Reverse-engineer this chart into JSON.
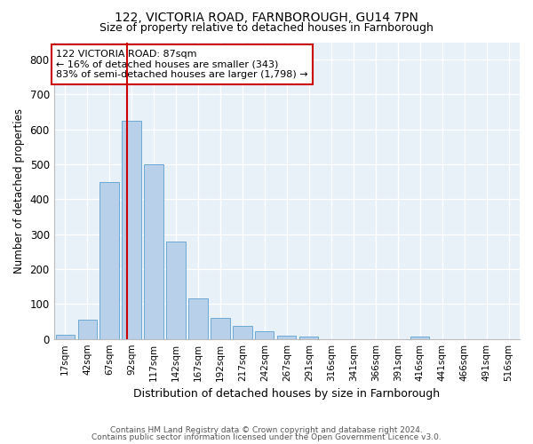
{
  "title1": "122, VICTORIA ROAD, FARNBOROUGH, GU14 7PN",
  "title2": "Size of property relative to detached houses in Farnborough",
  "xlabel": "Distribution of detached houses by size in Farnborough",
  "ylabel": "Number of detached properties",
  "bar_labels": [
    "17sqm",
    "42sqm",
    "67sqm",
    "92sqm",
    "117sqm",
    "142sqm",
    "167sqm",
    "192sqm",
    "217sqm",
    "242sqm",
    "267sqm",
    "291sqm",
    "316sqm",
    "341sqm",
    "366sqm",
    "391sqm",
    "416sqm",
    "441sqm",
    "466sqm",
    "491sqm",
    "516sqm"
  ],
  "bar_values": [
    12,
    55,
    450,
    625,
    500,
    280,
    115,
    60,
    37,
    22,
    10,
    8,
    0,
    0,
    0,
    0,
    8,
    0,
    0,
    0,
    0
  ],
  "bar_color": "#b8d0ea",
  "bar_edge_color": "#6aaad4",
  "background_color": "#e8f0f8",
  "grid_color": "#ffffff",
  "property_line_color": "#cc0000",
  "annotation_text": "122 VICTORIA ROAD: 87sqm\n← 16% of detached houses are smaller (343)\n83% of semi-detached houses are larger (1,798) →",
  "annotation_box_color": "#ffffff",
  "annotation_box_edge": "#cc0000",
  "ylim": [
    0,
    850
  ],
  "yticks": [
    0,
    100,
    200,
    300,
    400,
    500,
    600,
    700,
    800
  ],
  "footer1": "Contains HM Land Registry data © Crown copyright and database right 2024.",
  "footer2": "Contains public sector information licensed under the Open Government Licence v3.0."
}
